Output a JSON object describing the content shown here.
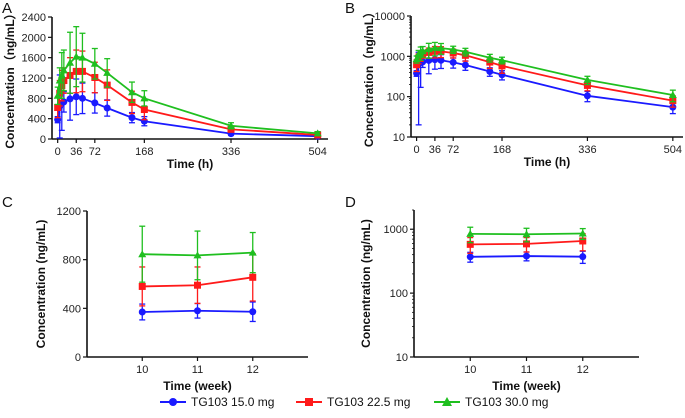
{
  "colors": {
    "s15": "#1a1aff",
    "s22": "#ff1a1a",
    "s30": "#1fbf1f",
    "axis": "#111111"
  },
  "legend": [
    {
      "name": "TG103 15.0 mg",
      "color": "#1a1aff",
      "marker": "circle"
    },
    {
      "name": "TG103 22.5 mg",
      "color": "#ff1a1a",
      "marker": "square"
    },
    {
      "name": "TG103 30.0 mg",
      "color": "#1fbf1f",
      "marker": "triangle"
    }
  ],
  "chart_data": [
    {
      "panel": "A",
      "type": "line",
      "yscale": "linear",
      "xlabel": "Time (h)",
      "ylabel": "Concentration（ng/mL）",
      "xlim": [
        -11,
        524
      ],
      "ylim": [
        0,
        2400
      ],
      "xticks": [
        0,
        36,
        72,
        168,
        336,
        504
      ],
      "yticks": [
        0,
        400,
        800,
        1200,
        1600,
        2000,
        2400
      ],
      "x": [
        0,
        4,
        8,
        12,
        24,
        36,
        48,
        72,
        96,
        144,
        168,
        336,
        504
      ],
      "series": [
        {
          "name": "TG103 15.0 mg",
          "values": [
            380,
            640,
            700,
            730,
            790,
            830,
            800,
            710,
            610,
            420,
            350,
            105,
            55
          ],
          "sd": [
            60,
            620,
            530,
            200,
            420,
            350,
            300,
            200,
            160,
            100,
            90,
            30,
            17
          ]
        },
        {
          "name": "TG103 22.5 mg",
          "values": [
            620,
            900,
            1050,
            1150,
            1250,
            1330,
            1330,
            1210,
            1060,
            720,
            580,
            190,
            80
          ],
          "sd": [
            200,
            250,
            300,
            250,
            350,
            420,
            400,
            300,
            300,
            220,
            200,
            50,
            25
          ]
        },
        {
          "name": "TG103 30.0 mg",
          "values": [
            850,
            1150,
            1250,
            1350,
            1500,
            1620,
            1600,
            1480,
            1300,
            920,
            800,
            260,
            110
          ],
          "sd": [
            170,
            250,
            450,
            400,
            600,
            590,
            480,
            300,
            280,
            200,
            150,
            60,
            35
          ]
        }
      ]
    },
    {
      "panel": "B",
      "type": "line",
      "yscale": "log",
      "xlabel": "Time (h)",
      "ylabel": "Concentration（ng/mL）",
      "xlim": [
        -11,
        524
      ],
      "ylim": [
        10,
        10000
      ],
      "xticks": [
        0,
        36,
        72,
        168,
        336,
        504
      ],
      "yticks": [
        10,
        100,
        1000,
        10000
      ],
      "x": [
        0,
        4,
        8,
        12,
        24,
        36,
        48,
        72,
        96,
        144,
        168,
        336,
        504
      ],
      "series": [
        {
          "name": "TG103 15.0 mg",
          "values": [
            380,
            640,
            700,
            730,
            790,
            830,
            800,
            710,
            610,
            420,
            350,
            105,
            55
          ],
          "sd": [
            60,
            620,
            530,
            200,
            420,
            350,
            300,
            200,
            160,
            100,
            90,
            30,
            17
          ]
        },
        {
          "name": "TG103 22.5 mg",
          "values": [
            620,
            900,
            1050,
            1150,
            1250,
            1330,
            1330,
            1210,
            1060,
            720,
            580,
            190,
            80
          ],
          "sd": [
            200,
            250,
            300,
            250,
            350,
            420,
            400,
            300,
            300,
            220,
            200,
            50,
            25
          ]
        },
        {
          "name": "TG103 30.0 mg",
          "values": [
            850,
            1150,
            1250,
            1350,
            1500,
            1620,
            1600,
            1480,
            1300,
            920,
            800,
            260,
            110
          ],
          "sd": [
            170,
            250,
            450,
            400,
            600,
            590,
            480,
            300,
            280,
            200,
            150,
            60,
            35
          ]
        }
      ]
    },
    {
      "panel": "C",
      "type": "line",
      "yscale": "linear",
      "xlabel": "Time (week)",
      "ylabel": "Concentration (ng/mL)",
      "xlim": [
        9,
        13
      ],
      "ylim": [
        0,
        1200
      ],
      "xticks": [
        10,
        11,
        12
      ],
      "yticks": [
        0,
        400,
        800,
        1200
      ],
      "x": [
        10,
        11,
        12
      ],
      "series": [
        {
          "name": "TG103 15.0 mg",
          "values": [
            370,
            380,
            372
          ],
          "sd": [
            65,
            60,
            80
          ]
        },
        {
          "name": "TG103 22.5 mg",
          "values": [
            580,
            590,
            655
          ],
          "sd": [
            160,
            150,
            195
          ]
        },
        {
          "name": "TG103 30.0 mg",
          "values": [
            845,
            835,
            858
          ],
          "sd": [
            230,
            200,
            165
          ]
        }
      ]
    },
    {
      "panel": "D",
      "type": "line",
      "yscale": "log",
      "xlabel": "Time (week)",
      "ylabel": "Concentration (ng/mL)",
      "xlim": [
        9,
        13
      ],
      "ylim": [
        10,
        2000
      ],
      "xticks": [
        10,
        11,
        12
      ],
      "yticks": [
        10,
        100,
        1000
      ],
      "x": [
        10,
        11,
        12
      ],
      "series": [
        {
          "name": "TG103 15.0 mg",
          "values": [
            370,
            380,
            372
          ],
          "sd": [
            65,
            60,
            80
          ]
        },
        {
          "name": "TG103 22.5 mg",
          "values": [
            580,
            590,
            655
          ],
          "sd": [
            160,
            150,
            195
          ]
        },
        {
          "name": "TG103 30.0 mg",
          "values": [
            845,
            835,
            858
          ],
          "sd": [
            230,
            200,
            165
          ]
        }
      ]
    }
  ]
}
